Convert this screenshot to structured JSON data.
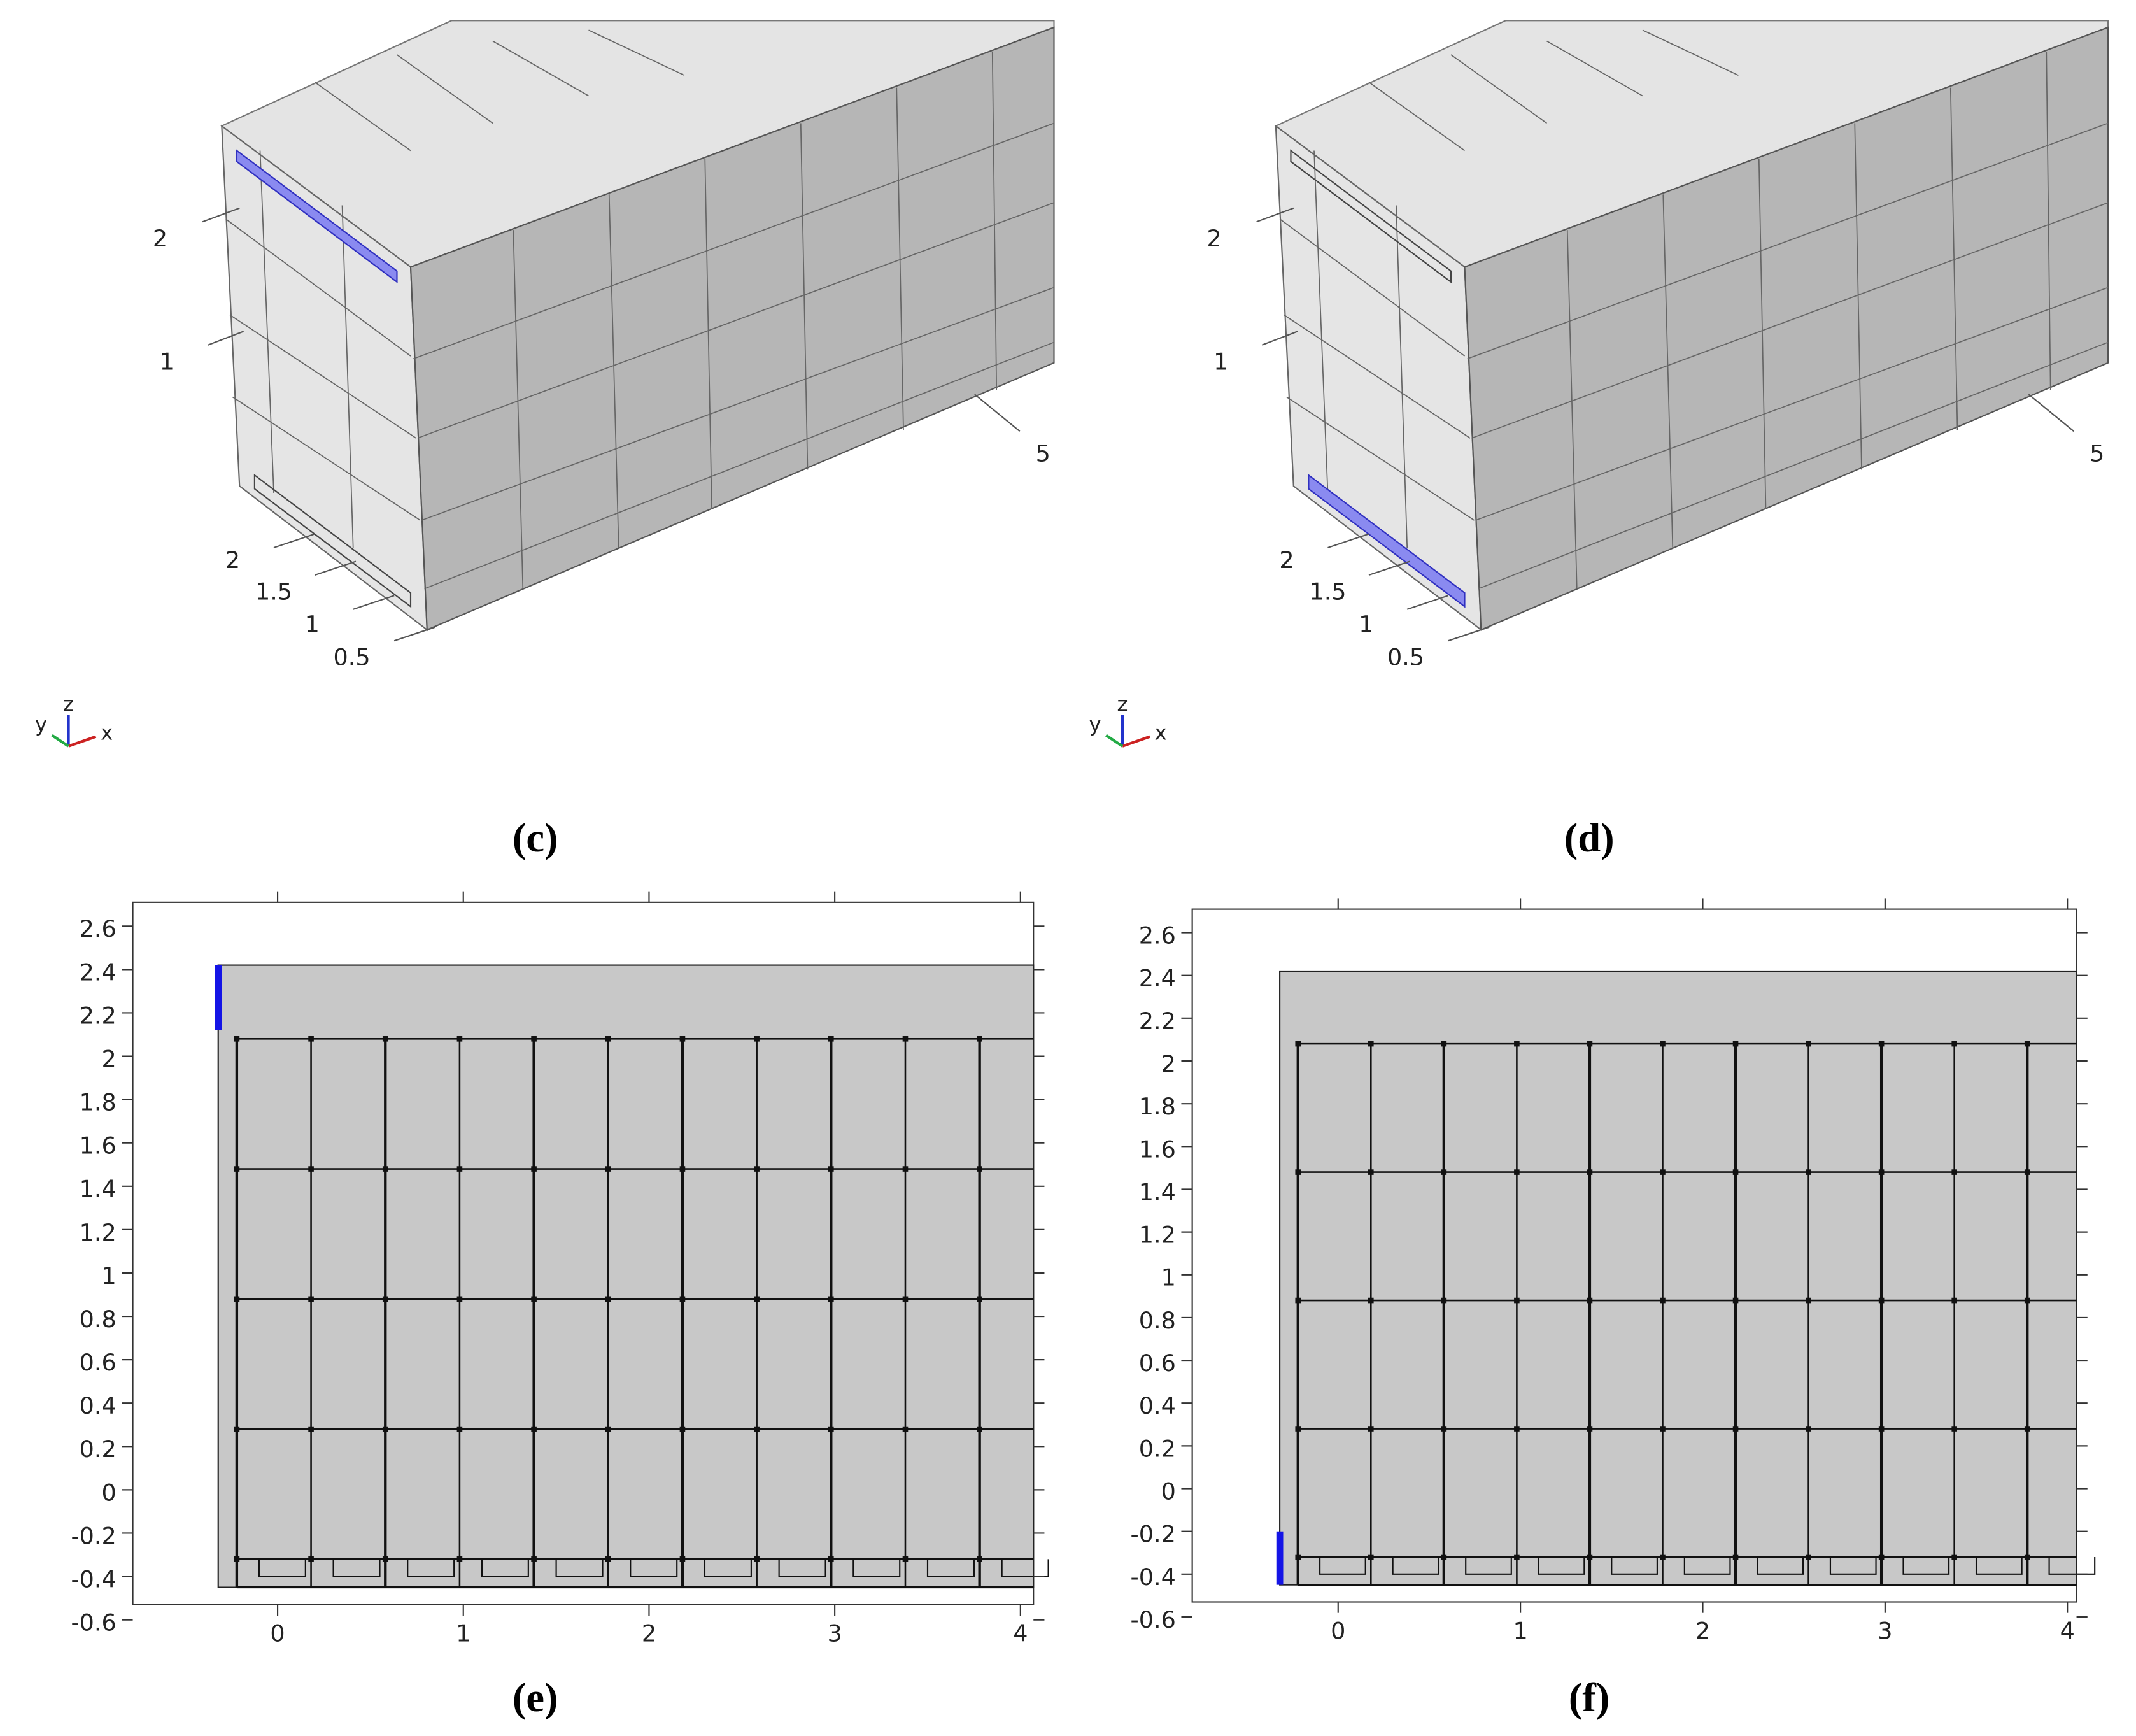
{
  "panels": [
    {
      "label": "(c)",
      "axis_labels": [
        "2",
        "1",
        "5",
        "2",
        "1.5",
        "1",
        "0.5"
      ],
      "triad": [
        "y",
        "z",
        "x"
      ]
    },
    {
      "label": "(d)",
      "axis_labels": [
        "2",
        "1",
        "5",
        "2",
        "1.5",
        "1",
        "0.5"
      ],
      "triad": [
        "y",
        "z",
        "x"
      ]
    }
  ],
  "plots": [
    {
      "label": "(e)",
      "xlim": [
        -0.78,
        4.07
      ],
      "ylim": [
        -0.53,
        2.71
      ],
      "xticks": [
        0,
        1,
        2,
        3,
        4
      ],
      "yticks": [
        2.6,
        2.4,
        2.2,
        2,
        1.8,
        1.6,
        1.4,
        1.2,
        1,
        0.8,
        0.6,
        0.4,
        0.2,
        0,
        -0.2,
        -0.4,
        -0.6
      ],
      "highlight": "top"
    },
    {
      "label": "(f)",
      "xlim": [
        -0.8,
        4.05
      ],
      "ylim": [
        -0.53,
        2.71
      ],
      "xticks": [
        0,
        1,
        2,
        3,
        4
      ],
      "yticks": [
        2.6,
        2.4,
        2.2,
        2,
        1.8,
        1.6,
        1.4,
        1.2,
        1,
        0.8,
        0.6,
        0.4,
        0.2,
        0,
        -0.2,
        -0.4,
        -0.6
      ],
      "highlight": "bottom"
    }
  ]
}
